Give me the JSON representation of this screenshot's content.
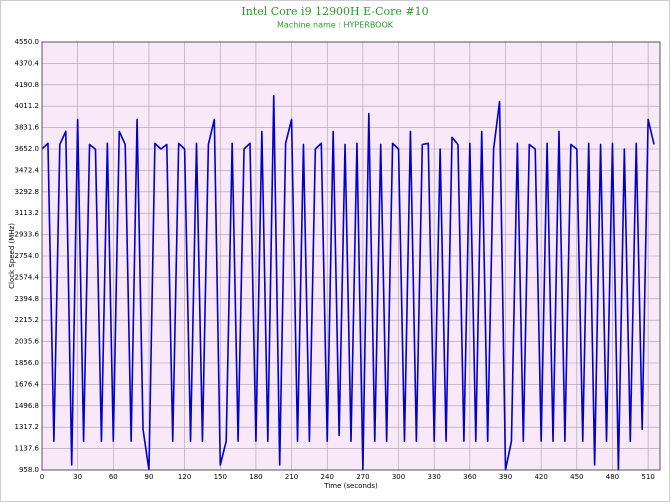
{
  "chart_data": {
    "type": "line",
    "title": "Intel Core i9 12900H E-Core #10",
    "subtitle": "Machine name : HYPERBOOK",
    "x_label": "Time (seconds)",
    "y_label": "Clock Speed (MHz)",
    "xlim": [
      0,
      520
    ],
    "xticks": [
      0,
      30,
      60,
      90,
      120,
      150,
      180,
      210,
      240,
      270,
      300,
      330,
      360,
      390,
      420,
      450,
      480,
      510
    ],
    "ylim": [
      958,
      4550
    ],
    "yticks": [
      {
        "value": 958,
        "label": "958.0"
      },
      1137.6,
      1317.2,
      1496.8,
      1676.4,
      {
        "value": 1856,
        "label": "1856.0"
      },
      2035.6,
      2215.2,
      2394.8,
      2574.4,
      {
        "value": 2754,
        "label": "2754.0"
      },
      2933.6,
      3113.2,
      3292.8,
      3472.4,
      {
        "value": 3652,
        "label": "3652.0"
      },
      3831.6,
      4011.2,
      4190.8,
      4370.4,
      {
        "value": 4550,
        "label": "4550.0"
      }
    ],
    "grid": true,
    "background": "#f8e8f8",
    "series": [
      {
        "color": "#0000cc",
        "x": [
          0,
          5,
          10,
          15,
          20,
          25,
          30,
          35,
          40,
          45,
          50,
          55,
          60,
          65,
          70,
          75,
          80,
          85,
          90,
          95,
          100,
          105,
          110,
          115,
          120,
          125,
          130,
          135,
          140,
          145,
          150,
          155,
          160,
          165,
          170,
          175,
          180,
          185,
          190,
          195,
          200,
          205,
          210,
          215,
          220,
          225,
          230,
          235,
          240,
          245,
          250,
          255,
          260,
          265,
          270,
          275,
          280,
          285,
          290,
          295,
          300,
          305,
          310,
          315,
          320,
          325,
          330,
          335,
          340,
          345,
          350,
          355,
          360,
          365,
          370,
          375,
          380,
          385,
          390,
          395,
          400,
          405,
          410,
          415,
          420,
          425,
          430,
          435,
          440,
          445,
          450,
          455,
          460,
          465,
          470,
          475,
          480,
          485,
          490,
          495,
          500,
          505,
          510,
          515
        ],
        "values": [
          3652,
          3700,
          1200,
          3690,
          3800,
          1000,
          3900,
          1200,
          3690,
          3650,
          1200,
          3700,
          1200,
          3800,
          3690,
          1200,
          3900,
          1300,
          958,
          3700,
          3652,
          3690,
          1200,
          3700,
          3652,
          1200,
          3700,
          1200,
          3690,
          3900,
          1000,
          1200,
          3700,
          1200,
          3652,
          3700,
          1200,
          3800,
          1200,
          4100,
          1000,
          3700,
          3900,
          1200,
          3690,
          1200,
          3652,
          3700,
          1200,
          3800,
          1250,
          3690,
          1200,
          3700,
          958,
          3950,
          1200,
          3690,
          1200,
          3700,
          3652,
          1200,
          3800,
          1200,
          3690,
          3700,
          1200,
          3652,
          1200,
          3750,
          3690,
          1200,
          3700,
          1200,
          3800,
          1200,
          3652,
          4050,
          958,
          1200,
          3700,
          1200,
          3690,
          3652,
          1200,
          3700,
          1200,
          3800,
          1200,
          3690,
          3652,
          1200,
          3700,
          1000,
          3690,
          1200,
          3700,
          958,
          3652,
          1200,
          3700,
          1300,
          3900,
          3690
        ]
      }
    ]
  }
}
